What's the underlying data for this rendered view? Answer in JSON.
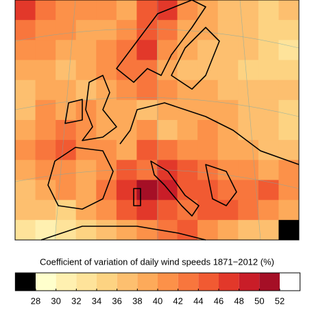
{
  "chart_data": {
    "type": "heatmap",
    "title": "Coefficient of variation of daily wind speeds 1871−2012 (%)",
    "values": [
      [
        46,
        42,
        40,
        40,
        40,
        38,
        44,
        46,
        40,
        38,
        36,
        36,
        34,
        36
      ],
      [
        42,
        40,
        40,
        38,
        38,
        40,
        44,
        42,
        38,
        38,
        36,
        36,
        34,
        34
      ],
      [
        40,
        40,
        38,
        38,
        40,
        42,
        46,
        40,
        38,
        36,
        36,
        36,
        34,
        32
      ],
      [
        38,
        38,
        36,
        38,
        40,
        42,
        42,
        38,
        36,
        36,
        36,
        34,
        34,
        34
      ],
      [
        36,
        38,
        38,
        36,
        38,
        40,
        42,
        40,
        38,
        38,
        36,
        36,
        36,
        36
      ],
      [
        36,
        40,
        38,
        40,
        38,
        38,
        36,
        38,
        38,
        38,
        38,
        36,
        36,
        34
      ],
      [
        38,
        40,
        42,
        40,
        38,
        38,
        40,
        36,
        38,
        40,
        38,
        36,
        36,
        34
      ],
      [
        40,
        42,
        44,
        40,
        40,
        38,
        44,
        42,
        40,
        40,
        38,
        38,
        36,
        36
      ],
      [
        38,
        40,
        40,
        38,
        40,
        44,
        42,
        46,
        44,
        42,
        40,
        40,
        38,
        40
      ],
      [
        36,
        38,
        40,
        38,
        42,
        46,
        50,
        48,
        44,
        44,
        42,
        42,
        44,
        40
      ],
      [
        36,
        36,
        34,
        38,
        40,
        44,
        46,
        44,
        42,
        44,
        44,
        42,
        40,
        38
      ],
      [
        32,
        30,
        32,
        34,
        36,
        38,
        40,
        42,
        44,
        40,
        38,
        36,
        36,
        26
      ]
    ],
    "colorbar": {
      "ticks": [
        28,
        30,
        32,
        34,
        36,
        38,
        40,
        42,
        44,
        46,
        48,
        50,
        52
      ],
      "colors": [
        "#ffffcc",
        "#fff0b0",
        "#fee39a",
        "#fdd382",
        "#fdbf6f",
        "#fdaa5a",
        "#fc9149",
        "#f8763d",
        "#f15a32",
        "#e2382a",
        "#c91d28",
        "#a50f26"
      ],
      "under_color": "#000000",
      "over_color": "#ffffff"
    }
  }
}
